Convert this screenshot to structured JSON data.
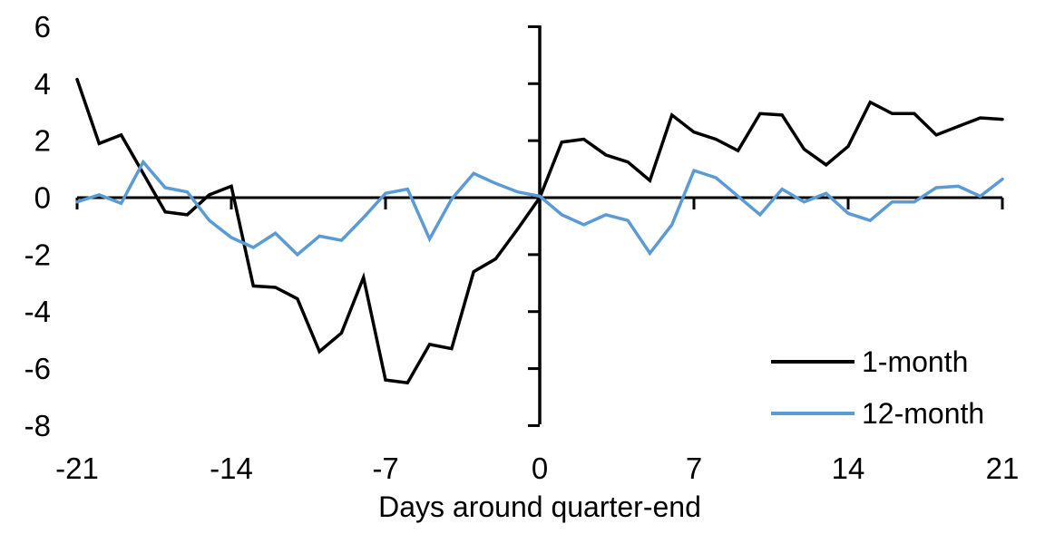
{
  "chart_data": {
    "type": "line",
    "title": "",
    "xlabel": "Days around quarter-end",
    "ylabel": "",
    "xlim": [
      -21,
      21
    ],
    "ylim": [
      -8,
      6
    ],
    "grid": false,
    "legend_position": "inside-bottom-right",
    "xticks": [
      -21,
      -14,
      -7,
      0,
      7,
      14,
      21
    ],
    "xticklabels": [
      "-21",
      "-14",
      "-7",
      "0",
      "7",
      "14",
      "21"
    ],
    "yticks": [
      6,
      4,
      2,
      0,
      -2,
      -4,
      -6,
      -8
    ],
    "yticklabels": [
      "6",
      "4",
      "2",
      "0",
      "-2",
      "-4",
      "-6",
      "-8"
    ],
    "axis_color": "#000000",
    "x": [
      -21,
      -20,
      -19,
      -18,
      -17,
      -16,
      -15,
      -14,
      -13,
      -12,
      -11,
      -10,
      -9,
      -8,
      -7,
      -6,
      -5,
      -4,
      -3,
      -2,
      -1,
      0,
      1,
      2,
      3,
      4,
      5,
      6,
      7,
      8,
      9,
      10,
      11,
      12,
      13,
      14,
      15,
      16,
      17,
      18,
      19,
      20,
      21
    ],
    "series": [
      {
        "name": "1-month",
        "color": "#000000",
        "values": [
          4.15,
          1.9,
          2.2,
          0.85,
          -0.5,
          -0.6,
          0.1,
          0.4,
          -3.1,
          -3.15,
          -3.55,
          -5.4,
          -4.75,
          -2.8,
          -6.4,
          -6.5,
          -5.15,
          -5.3,
          -2.6,
          -2.15,
          -1.1,
          0,
          1.95,
          2.05,
          1.5,
          1.25,
          0.6,
          2.9,
          2.3,
          2.05,
          1.65,
          2.95,
          2.9,
          1.7,
          1.15,
          1.8,
          3.35,
          2.95,
          2.95,
          2.2,
          2.5,
          2.8,
          2.75
        ]
      },
      {
        "name": "12-month",
        "color": "#5B9BD5",
        "values": [
          -0.15,
          0.1,
          -0.2,
          1.25,
          0.35,
          0.2,
          -0.8,
          -1.4,
          -1.75,
          -1.25,
          -2.0,
          -1.35,
          -1.5,
          -0.7,
          0.15,
          0.3,
          -1.45,
          -0.05,
          0.85,
          0.5,
          0.2,
          0.05,
          -0.6,
          -0.95,
          -0.6,
          -0.8,
          -1.95,
          -0.95,
          0.95,
          0.7,
          0.05,
          -0.6,
          0.3,
          -0.15,
          0.15,
          -0.55,
          -0.8,
          -0.15,
          -0.15,
          0.35,
          0.4,
          0.05,
          0.65
        ]
      }
    ]
  }
}
